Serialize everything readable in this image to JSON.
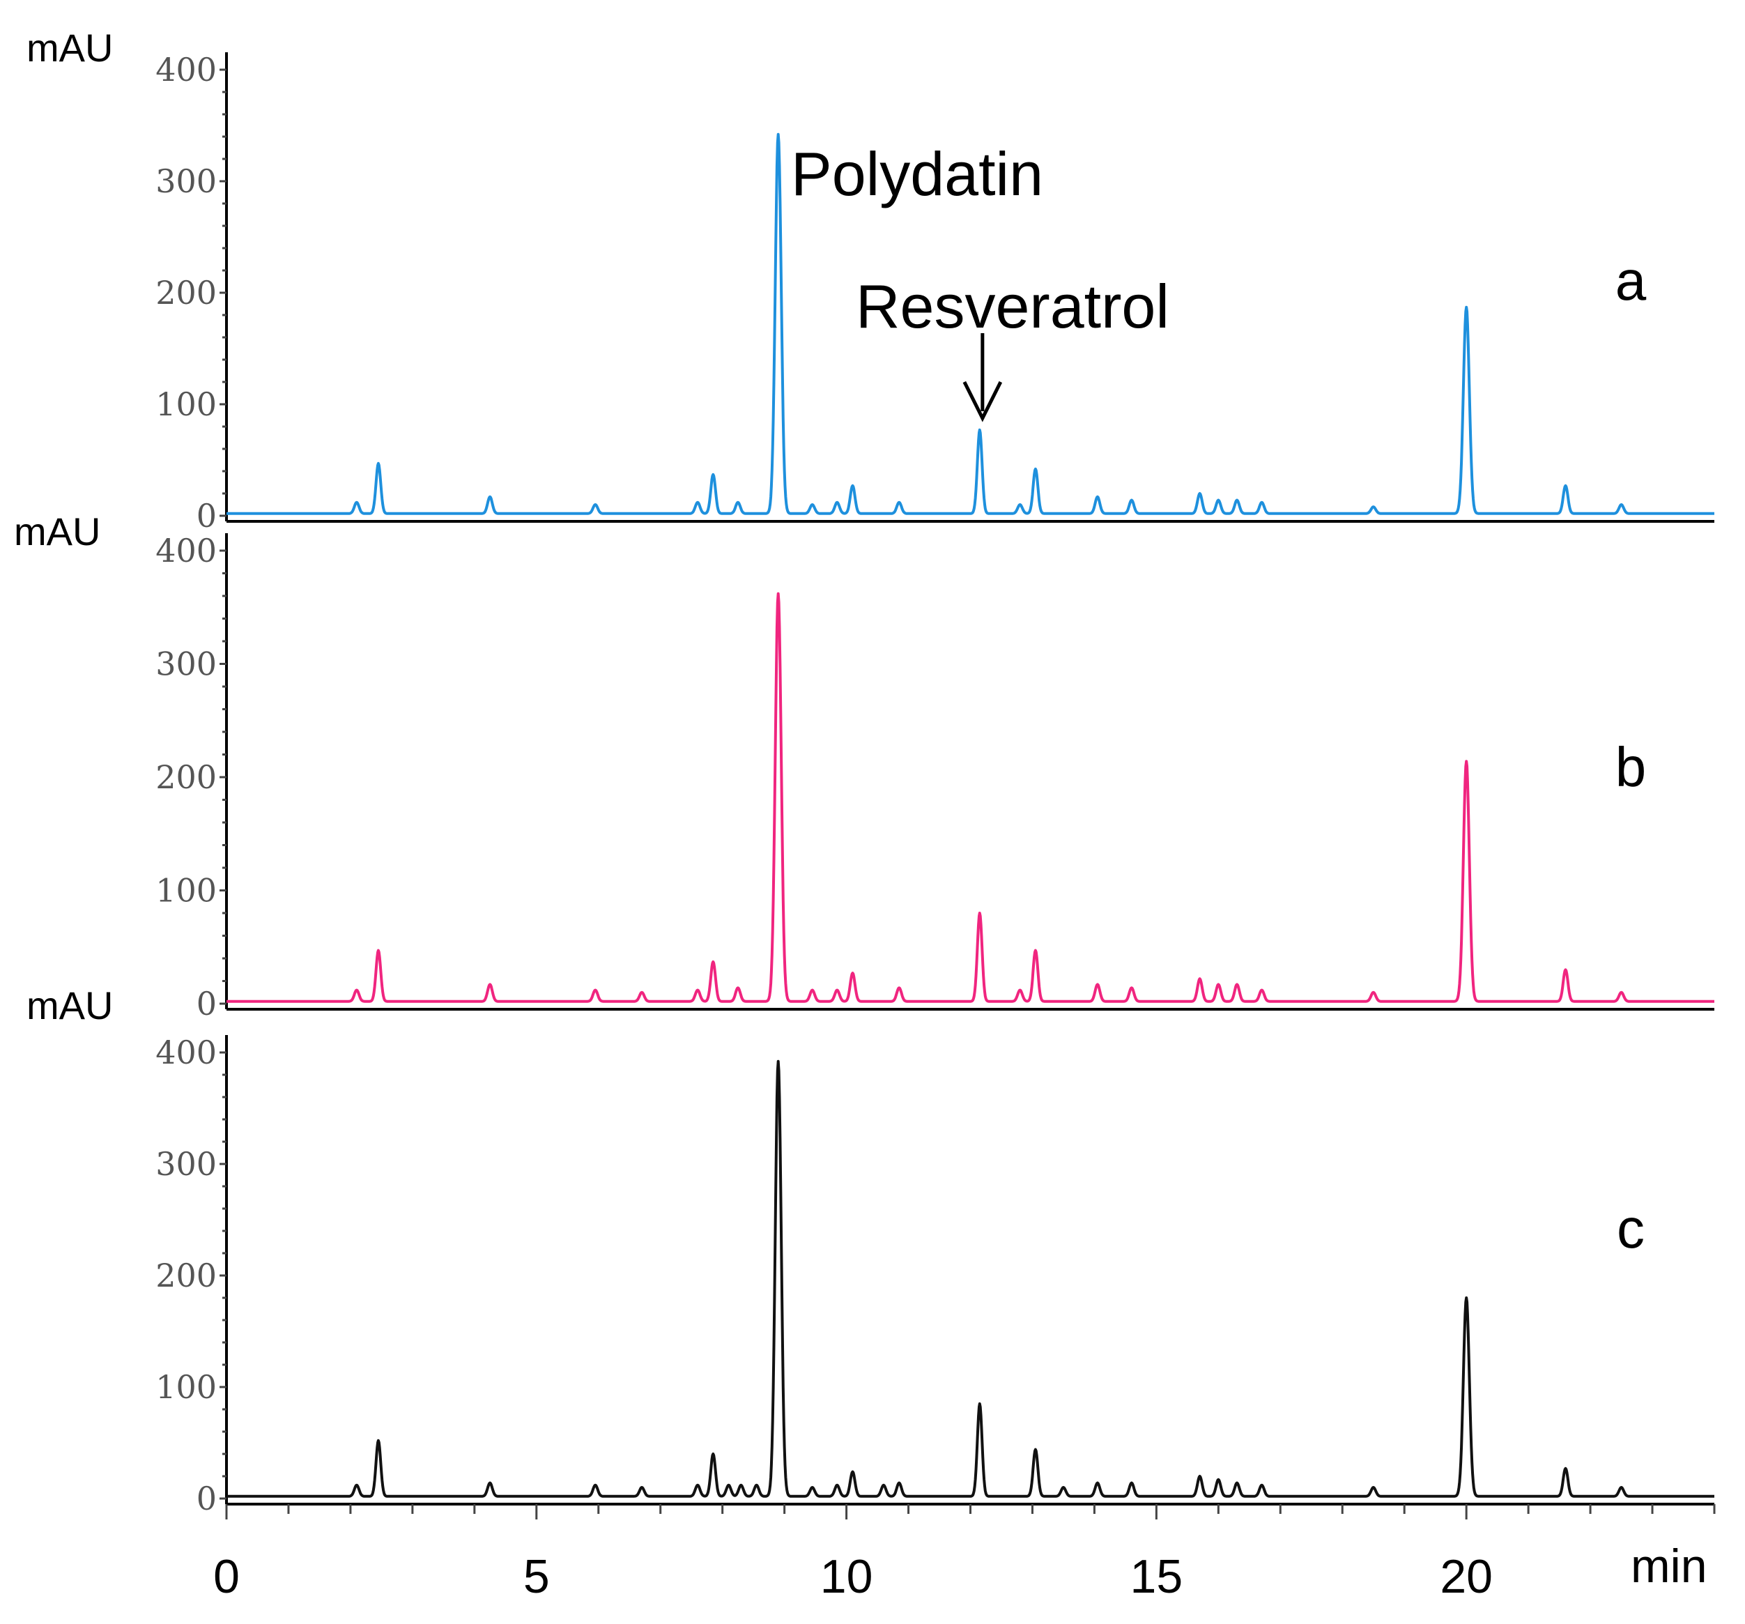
{
  "chart_data": {
    "type": "line",
    "title": "",
    "xlabel": "min",
    "ylabel": "mAU",
    "xlim": [
      0,
      24
    ],
    "ylim": [
      0,
      400
    ],
    "x_ticks": [
      "0",
      "5",
      "10",
      "15",
      "20"
    ],
    "y_ticks": [
      "0",
      "100",
      "200",
      "300",
      "400"
    ],
    "series": [
      {
        "name": "a",
        "color": "#1e90dd",
        "peaks": [
          [
            2.1,
            10
          ],
          [
            2.45,
            45
          ],
          [
            4.25,
            15
          ],
          [
            5.95,
            8
          ],
          [
            7.6,
            10
          ],
          [
            7.85,
            35
          ],
          [
            8.25,
            10
          ],
          [
            8.9,
            340
          ],
          [
            9.45,
            8
          ],
          [
            9.85,
            10
          ],
          [
            10.1,
            25
          ],
          [
            10.85,
            10
          ],
          [
            12.15,
            75
          ],
          [
            12.8,
            8
          ],
          [
            13.05,
            40
          ],
          [
            14.05,
            15
          ],
          [
            14.6,
            12
          ],
          [
            15.7,
            18
          ],
          [
            16.0,
            12
          ],
          [
            16.3,
            12
          ],
          [
            16.7,
            10
          ],
          [
            18.5,
            6
          ],
          [
            20.0,
            185
          ],
          [
            21.6,
            25
          ],
          [
            22.5,
            8
          ]
        ]
      },
      {
        "name": "b",
        "color": "#f0257f",
        "peaks": [
          [
            2.1,
            10
          ],
          [
            2.45,
            45
          ],
          [
            4.25,
            15
          ],
          [
            5.95,
            10
          ],
          [
            6.7,
            8
          ],
          [
            7.6,
            10
          ],
          [
            7.85,
            35
          ],
          [
            8.25,
            12
          ],
          [
            8.9,
            360
          ],
          [
            9.45,
            10
          ],
          [
            9.85,
            10
          ],
          [
            10.1,
            25
          ],
          [
            10.85,
            12
          ],
          [
            12.15,
            78
          ],
          [
            12.8,
            10
          ],
          [
            13.05,
            45
          ],
          [
            14.05,
            15
          ],
          [
            14.6,
            12
          ],
          [
            15.7,
            20
          ],
          [
            16.0,
            15
          ],
          [
            16.3,
            15
          ],
          [
            16.7,
            10
          ],
          [
            18.5,
            8
          ],
          [
            20.0,
            212
          ],
          [
            21.6,
            28
          ],
          [
            22.5,
            8
          ]
        ]
      },
      {
        "name": "c",
        "color": "#111111",
        "peaks": [
          [
            2.1,
            10
          ],
          [
            2.45,
            50
          ],
          [
            4.25,
            12
          ],
          [
            5.95,
            10
          ],
          [
            6.7,
            8
          ],
          [
            7.6,
            10
          ],
          [
            7.85,
            38
          ],
          [
            8.1,
            10
          ],
          [
            8.3,
            10
          ],
          [
            8.55,
            10
          ],
          [
            8.9,
            390
          ],
          [
            9.45,
            8
          ],
          [
            9.85,
            10
          ],
          [
            10.1,
            22
          ],
          [
            10.6,
            10
          ],
          [
            10.85,
            12
          ],
          [
            12.15,
            83
          ],
          [
            13.05,
            42
          ],
          [
            13.5,
            8
          ],
          [
            14.05,
            12
          ],
          [
            14.6,
            12
          ],
          [
            15.7,
            18
          ],
          [
            16.0,
            15
          ],
          [
            16.3,
            12
          ],
          [
            16.7,
            10
          ],
          [
            18.5,
            8
          ],
          [
            20.0,
            178
          ],
          [
            21.6,
            25
          ],
          [
            22.5,
            8
          ]
        ]
      }
    ],
    "annotations": {
      "polydatin": "Polydatin",
      "resveratrol": "Resveratrol"
    },
    "panel_labels": [
      "a",
      "b",
      "c"
    ],
    "unit_label": "mAU"
  }
}
